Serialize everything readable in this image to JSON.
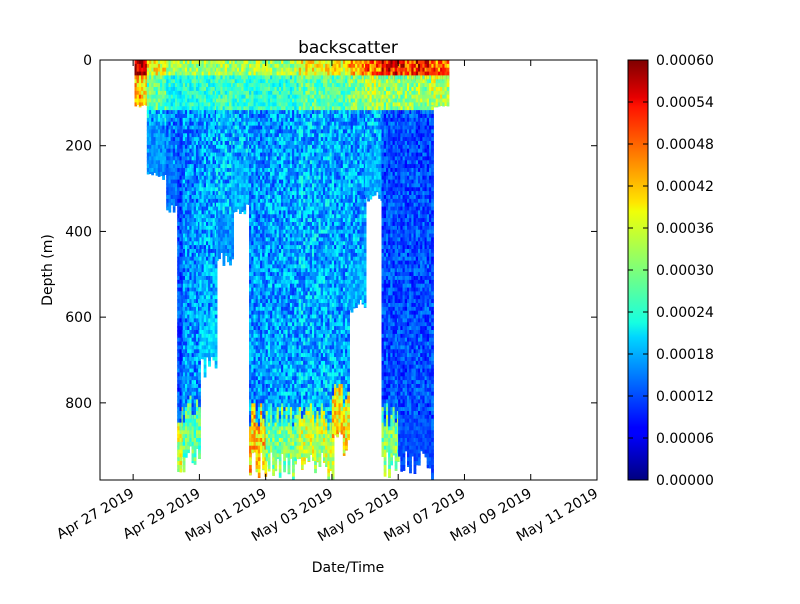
{
  "chart_data": {
    "type": "scatter",
    "title": "backscatter",
    "xlabel": "Date/Time",
    "ylabel": "Depth (m)",
    "x_scale": "date",
    "xlim": [
      "2019-04-26",
      "2019-05-11"
    ],
    "ylim": [
      980,
      0
    ],
    "y_inverted": true,
    "x_ticks": [
      "Apr 27 2019",
      "Apr 29 2019",
      "May 01 2019",
      "May 03 2019",
      "May 05 2019",
      "May 07 2019",
      "May 09 2019",
      "May 11 2019"
    ],
    "y_ticks": [
      0,
      200,
      400,
      600,
      800
    ],
    "grid": false,
    "colormap": "jet",
    "colorbar": {
      "label": "",
      "vmin": 0.0,
      "vmax": 0.0006,
      "ticks": [
        "0.00000",
        "0.00006",
        "0.00012",
        "0.00018",
        "0.00024",
        "0.00030",
        "0.00036",
        "0.00042",
        "0.00048",
        "0.00054",
        "0.00060"
      ]
    },
    "profiles": [
      {
        "start": "2019-04-27 01:00",
        "end": "2019-04-27 10:00",
        "max_depth": 110,
        "surface_value": 0.0006,
        "mid_value": 0.00025,
        "deep_value": 0.0002
      },
      {
        "start": "2019-04-27 10:00",
        "end": "2019-04-28 00:00",
        "max_depth": 280,
        "surface_value": 0.0004,
        "mid_value": 0.00018,
        "deep_value": 0.00016
      },
      {
        "start": "2019-04-28 00:00",
        "end": "2019-04-28 08:00",
        "max_depth": 360,
        "surface_value": 0.00035,
        "mid_value": 0.00015,
        "deep_value": 0.00014
      },
      {
        "start": "2019-04-28 08:00",
        "end": "2019-04-28 12:00",
        "max_depth": 975,
        "surface_value": 0.00035,
        "mid_value": 0.00012,
        "deep_value": 0.00035
      },
      {
        "start": "2019-04-28 12:00",
        "end": "2019-04-29 00:00",
        "max_depth": 965,
        "surface_value": 0.00035,
        "mid_value": 0.00016,
        "deep_value": 0.00028
      },
      {
        "start": "2019-04-29 00:00",
        "end": "2019-04-29 12:00",
        "max_depth": 740,
        "surface_value": 0.00035,
        "mid_value": 0.00017,
        "deep_value": 0.0002
      },
      {
        "start": "2019-04-29 12:00",
        "end": "2019-04-30 00:00",
        "max_depth": 480,
        "surface_value": 0.00035,
        "mid_value": 0.00018,
        "deep_value": 0.00016
      },
      {
        "start": "2019-04-30 00:00",
        "end": "2019-04-30 12:00",
        "max_depth": 360,
        "surface_value": 0.00035,
        "mid_value": 0.00018,
        "deep_value": 0.00018
      },
      {
        "start": "2019-04-30 12:00",
        "end": "2019-05-01 00:00",
        "max_depth": 980,
        "surface_value": 0.00035,
        "mid_value": 0.00016,
        "deep_value": 0.0004
      },
      {
        "start": "2019-05-01 00:00",
        "end": "2019-05-02 00:00",
        "max_depth": 980,
        "surface_value": 0.00035,
        "mid_value": 0.00017,
        "deep_value": 0.0003
      },
      {
        "start": "2019-05-02 00:00",
        "end": "2019-05-03 00:00",
        "max_depth": 980,
        "surface_value": 0.0004,
        "mid_value": 0.00018,
        "deep_value": 0.00034
      },
      {
        "start": "2019-05-03 00:00",
        "end": "2019-05-03 12:00",
        "max_depth": 930,
        "surface_value": 0.0004,
        "mid_value": 0.00017,
        "deep_value": 0.00038
      },
      {
        "start": "2019-05-03 12:00",
        "end": "2019-05-04 00:00",
        "max_depth": 600,
        "surface_value": 0.00045,
        "mid_value": 0.00017,
        "deep_value": 0.00018
      },
      {
        "start": "2019-05-04 00:00",
        "end": "2019-05-04 12:00",
        "max_depth": 330,
        "surface_value": 0.0005,
        "mid_value": 0.00018,
        "deep_value": 0.00018
      },
      {
        "start": "2019-05-04 12:00",
        "end": "2019-05-05 00:00",
        "max_depth": 980,
        "surface_value": 0.00055,
        "mid_value": 0.00012,
        "deep_value": 0.0003
      },
      {
        "start": "2019-05-05 00:00",
        "end": "2019-05-06 00:00",
        "max_depth": 980,
        "surface_value": 0.00055,
        "mid_value": 0.00012,
        "deep_value": 0.00012
      },
      {
        "start": "2019-05-06 00:00",
        "end": "2019-05-06 12:00",
        "max_depth": 110,
        "surface_value": 0.0005,
        "mid_value": 0.0002,
        "deep_value": 0.00018
      }
    ]
  }
}
